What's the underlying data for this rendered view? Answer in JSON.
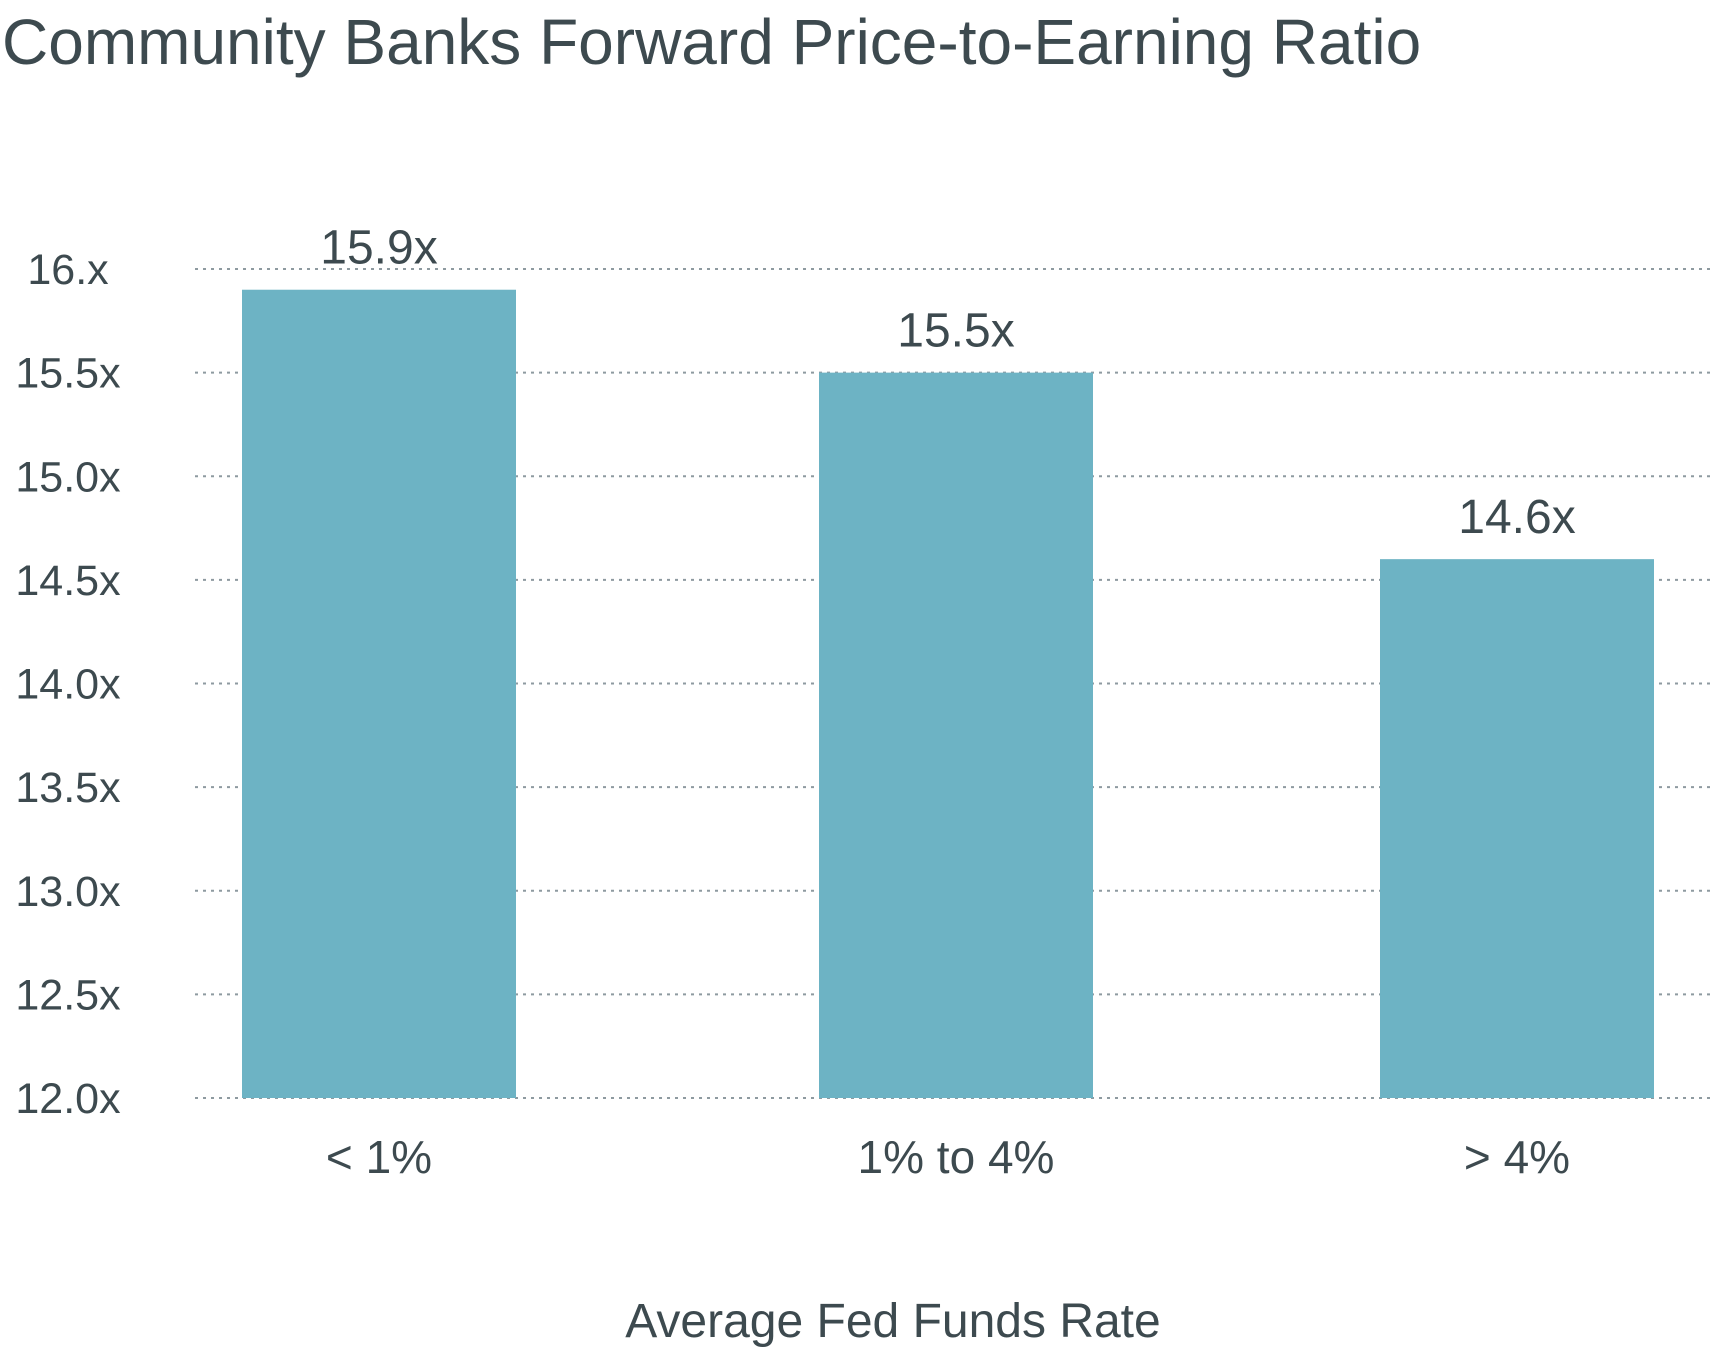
{
  "chart_data": {
    "type": "bar",
    "title": "Community Banks Forward Price-to-Earning Ratio",
    "xlabel": "Average Fed Funds Rate",
    "ylabel": "",
    "categories": [
      "< 1%",
      "1% to 4%",
      "> 4%"
    ],
    "values": [
      15.9,
      15.5,
      14.6
    ],
    "data_labels": [
      "15.9x",
      "15.5x",
      "14.6x"
    ],
    "ylim": [
      12.0,
      16.0
    ],
    "y_ticks": [
      12.0,
      12.5,
      13.0,
      13.5,
      14.0,
      14.5,
      15.0,
      15.5,
      16.0
    ],
    "y_tick_labels": [
      "12.0x",
      "12.5x",
      "13.0x",
      "13.5x",
      "14.0x",
      "14.5x",
      "15.0x",
      "15.5x",
      "16.x"
    ],
    "grid": true,
    "legend": "none",
    "bar_color": "#6db3c4",
    "text_color": "#3d4a4f",
    "grid_color": "#8e9aa0"
  }
}
